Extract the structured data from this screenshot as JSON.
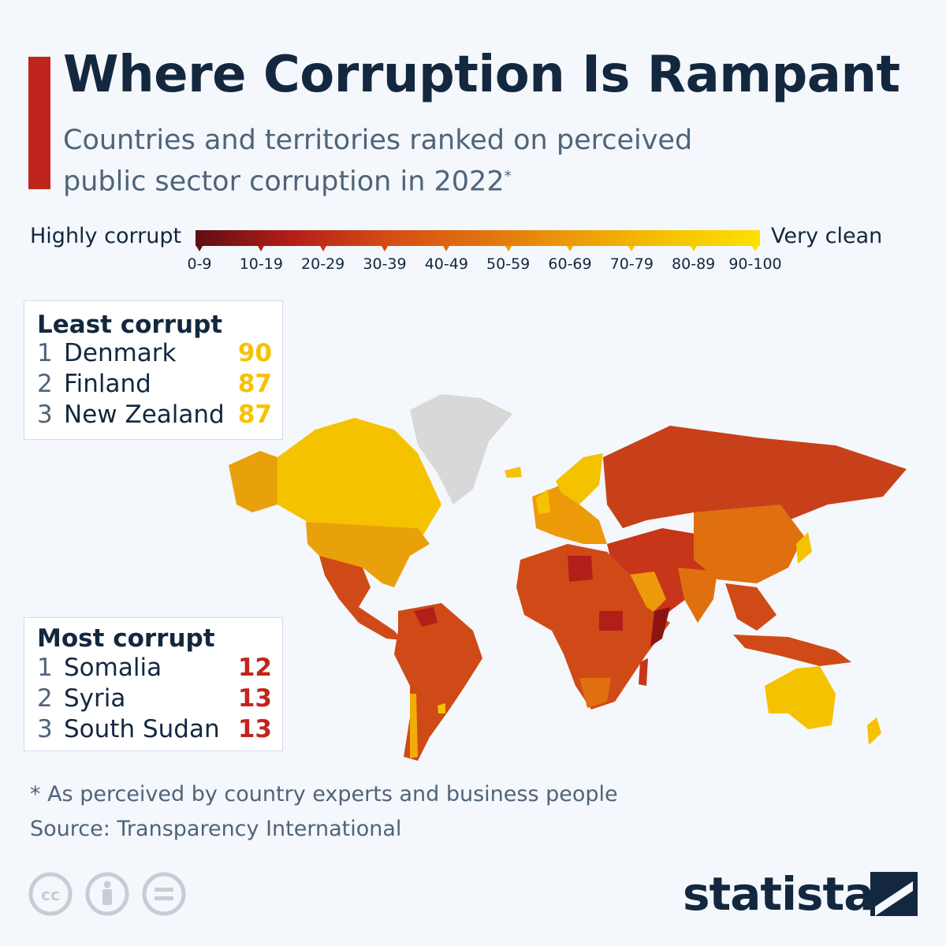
{
  "header": {
    "title": "Where Corruption Is Rampant",
    "subtitle": "Countries and territories ranked on perceived public sector corruption in 2022",
    "subtitle_mark": "*"
  },
  "legend": {
    "left_label": "Highly corrupt",
    "right_label": "Very clean",
    "ticks": [
      "0-9",
      "10-19",
      "20-29",
      "30-39",
      "40-49",
      "50-59",
      "60-69",
      "70-79",
      "80-89",
      "90-100"
    ],
    "colors": [
      "#5e0f14",
      "#b21e18",
      "#c8361a",
      "#d44a14",
      "#e0700f",
      "#ec9a0a",
      "#f2ae08",
      "#f5c200",
      "#fad400",
      "#fde000"
    ]
  },
  "least_corrupt": {
    "title": "Least corrupt",
    "items": [
      {
        "rank": "1",
        "country": "Denmark",
        "score": "90"
      },
      {
        "rank": "2",
        "country": "Finland",
        "score": "87"
      },
      {
        "rank": "3",
        "country": "New Zealand",
        "score": "87"
      }
    ],
    "score_color": "#f5c200"
  },
  "most_corrupt": {
    "title": "Most corrupt",
    "items": [
      {
        "rank": "1",
        "country": "Somalia",
        "score": "12"
      },
      {
        "rank": "2",
        "country": "Syria",
        "score": "13"
      },
      {
        "rank": "3",
        "country": "South Sudan",
        "score": "13"
      }
    ],
    "score_color": "#c0251d"
  },
  "footer": {
    "footnote": "* As perceived by country experts and business people",
    "source": "Source: Transparency International",
    "logo": "statista"
  },
  "icons": [
    "cc-icon",
    "attribution-icon",
    "no-derivatives-icon",
    "statista-logo-icon"
  ]
}
